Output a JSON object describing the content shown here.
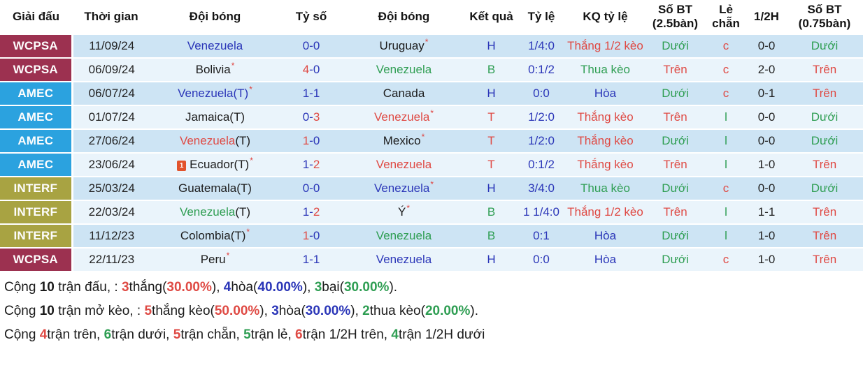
{
  "table": {
    "columns": [
      "Giải đấu",
      "Thời gian",
      "Đội bóng",
      "Tỷ số",
      "Đội bóng",
      "Kết quả",
      "Tỷ lệ",
      "KQ tỷ lệ",
      "Số BT (2.5bàn)",
      "Lẻ chẵn",
      "1/2H",
      "Số BT (0.75bàn)"
    ]
  },
  "icons": {
    "red_card_label": "1"
  },
  "colors": {
    "wcpsa_bg": "#9c3150",
    "amec_bg": "#2ba2df",
    "interf_bg": "#a8a342",
    "row_odd_bg": "#cde4f4",
    "row_even_bg": "#eaf4fb",
    "blue": "#2b36b8",
    "red": "#df4a44",
    "green": "#2f9e53"
  },
  "rows": [
    {
      "league": "WCPSA",
      "league_class": "wcpsa",
      "date": "11/09/24",
      "home": {
        "name": "Venezuela",
        "suffix": "",
        "color": "blue",
        "suffix_color": "blue",
        "star": false,
        "icon": false
      },
      "score": {
        "h": "0",
        "a": "0",
        "hc": "blue",
        "ac": "blue"
      },
      "away": {
        "name": "Uruguay",
        "suffix": "",
        "color": "black",
        "suffix_color": "black",
        "star": true,
        "icon": false
      },
      "result": {
        "t": "H",
        "c": "blue"
      },
      "odds": "1/4:0",
      "kq": {
        "t": "Thắng 1/2 kèo",
        "c": "red"
      },
      "bt25": {
        "t": "Dưới",
        "c": "green"
      },
      "oe": {
        "t": "c",
        "c": "red"
      },
      "h12": "0-0",
      "bt075": {
        "t": "Dưới",
        "c": "green"
      }
    },
    {
      "league": "WCPSA",
      "league_class": "wcpsa",
      "date": "06/09/24",
      "home": {
        "name": "Bolivia",
        "suffix": "",
        "color": "black",
        "suffix_color": "black",
        "star": true,
        "icon": false
      },
      "score": {
        "h": "4",
        "a": "0",
        "hc": "red",
        "ac": "blue"
      },
      "away": {
        "name": "Venezuela",
        "suffix": "",
        "color": "green",
        "suffix_color": "green",
        "star": false,
        "icon": false
      },
      "result": {
        "t": "B",
        "c": "green"
      },
      "odds": "0:1/2",
      "kq": {
        "t": "Thua kèo",
        "c": "green"
      },
      "bt25": {
        "t": "Trên",
        "c": "red"
      },
      "oe": {
        "t": "c",
        "c": "red"
      },
      "h12": "2-0",
      "bt075": {
        "t": "Trên",
        "c": "red"
      }
    },
    {
      "league": "AMEC",
      "league_class": "amec",
      "date": "06/07/24",
      "home": {
        "name": "Venezuela",
        "suffix": "(T)",
        "color": "blue",
        "suffix_color": "blue",
        "star": true,
        "icon": false
      },
      "score": {
        "h": "1",
        "a": "1",
        "hc": "blue",
        "ac": "blue"
      },
      "away": {
        "name": "Canada",
        "suffix": "",
        "color": "black",
        "suffix_color": "black",
        "star": false,
        "icon": false
      },
      "result": {
        "t": "H",
        "c": "blue"
      },
      "odds": "0:0",
      "kq": {
        "t": "Hòa",
        "c": "blue"
      },
      "bt25": {
        "t": "Dưới",
        "c": "green"
      },
      "oe": {
        "t": "c",
        "c": "red"
      },
      "h12": "0-1",
      "bt075": {
        "t": "Trên",
        "c": "red"
      }
    },
    {
      "league": "AMEC",
      "league_class": "amec",
      "date": "01/07/24",
      "home": {
        "name": "Jamaica",
        "suffix": "(T)",
        "color": "black",
        "suffix_color": "black",
        "star": false,
        "icon": false
      },
      "score": {
        "h": "0",
        "a": "3",
        "hc": "blue",
        "ac": "red"
      },
      "away": {
        "name": "Venezuela",
        "suffix": "",
        "color": "red",
        "suffix_color": "red",
        "star": true,
        "icon": false
      },
      "result": {
        "t": "T",
        "c": "red"
      },
      "odds": "1/2:0",
      "kq": {
        "t": "Thắng kèo",
        "c": "red"
      },
      "bt25": {
        "t": "Trên",
        "c": "red"
      },
      "oe": {
        "t": "l",
        "c": "green"
      },
      "h12": "0-0",
      "bt075": {
        "t": "Dưới",
        "c": "green"
      }
    },
    {
      "league": "AMEC",
      "league_class": "amec",
      "date": "27/06/24",
      "home": {
        "name": "Venezuela",
        "suffix": "(T)",
        "color": "red",
        "suffix_color": "black",
        "star": false,
        "icon": false
      },
      "score": {
        "h": "1",
        "a": "0",
        "hc": "red",
        "ac": "blue"
      },
      "away": {
        "name": "Mexico",
        "suffix": "",
        "color": "black",
        "suffix_color": "black",
        "star": true,
        "icon": false
      },
      "result": {
        "t": "T",
        "c": "red"
      },
      "odds": "1/2:0",
      "kq": {
        "t": "Thắng kèo",
        "c": "red"
      },
      "bt25": {
        "t": "Dưới",
        "c": "green"
      },
      "oe": {
        "t": "l",
        "c": "green"
      },
      "h12": "0-0",
      "bt075": {
        "t": "Dưới",
        "c": "green"
      }
    },
    {
      "league": "AMEC",
      "league_class": "amec",
      "date": "23/06/24",
      "home": {
        "name": "Ecuador",
        "suffix": "(T)",
        "color": "black",
        "suffix_color": "black",
        "star": true,
        "icon": true
      },
      "score": {
        "h": "1",
        "a": "2",
        "hc": "blue",
        "ac": "red"
      },
      "away": {
        "name": "Venezuela",
        "suffix": "",
        "color": "red",
        "suffix_color": "red",
        "star": false,
        "icon": false
      },
      "result": {
        "t": "T",
        "c": "red"
      },
      "odds": "0:1/2",
      "kq": {
        "t": "Thắng kèo",
        "c": "red"
      },
      "bt25": {
        "t": "Trên",
        "c": "red"
      },
      "oe": {
        "t": "l",
        "c": "green"
      },
      "h12": "1-0",
      "bt075": {
        "t": "Trên",
        "c": "red"
      }
    },
    {
      "league": "INTERF",
      "league_class": "interf",
      "date": "25/03/24",
      "home": {
        "name": "Guatemala",
        "suffix": "(T)",
        "color": "black",
        "suffix_color": "black",
        "star": false,
        "icon": false
      },
      "score": {
        "h": "0",
        "a": "0",
        "hc": "blue",
        "ac": "blue"
      },
      "away": {
        "name": "Venezuela",
        "suffix": "",
        "color": "blue",
        "suffix_color": "blue",
        "star": true,
        "icon": false
      },
      "result": {
        "t": "H",
        "c": "blue"
      },
      "odds": "3/4:0",
      "kq": {
        "t": "Thua kèo",
        "c": "green"
      },
      "bt25": {
        "t": "Dưới",
        "c": "green"
      },
      "oe": {
        "t": "c",
        "c": "red"
      },
      "h12": "0-0",
      "bt075": {
        "t": "Dưới",
        "c": "green"
      }
    },
    {
      "league": "INTERF",
      "league_class": "interf",
      "date": "22/03/24",
      "home": {
        "name": "Venezuela",
        "suffix": "(T)",
        "color": "green",
        "suffix_color": "black",
        "star": false,
        "icon": false
      },
      "score": {
        "h": "1",
        "a": "2",
        "hc": "blue",
        "ac": "red"
      },
      "away": {
        "name": "Ý",
        "suffix": "",
        "color": "black",
        "suffix_color": "black",
        "star": true,
        "icon": false
      },
      "result": {
        "t": "B",
        "c": "green"
      },
      "odds": "1 1/4:0",
      "kq": {
        "t": "Thắng 1/2 kèo",
        "c": "red"
      },
      "bt25": {
        "t": "Trên",
        "c": "red"
      },
      "oe": {
        "t": "l",
        "c": "green"
      },
      "h12": "1-1",
      "bt075": {
        "t": "Trên",
        "c": "red"
      }
    },
    {
      "league": "INTERF",
      "league_class": "interf",
      "date": "11/12/23",
      "home": {
        "name": "Colombia",
        "suffix": "(T)",
        "color": "black",
        "suffix_color": "black",
        "star": true,
        "icon": false
      },
      "score": {
        "h": "1",
        "a": "0",
        "hc": "red",
        "ac": "blue"
      },
      "away": {
        "name": "Venezuela",
        "suffix": "",
        "color": "green",
        "suffix_color": "green",
        "star": false,
        "icon": false
      },
      "result": {
        "t": "B",
        "c": "green"
      },
      "odds": "0:1",
      "kq": {
        "t": "Hòa",
        "c": "blue"
      },
      "bt25": {
        "t": "Dưới",
        "c": "green"
      },
      "oe": {
        "t": "l",
        "c": "green"
      },
      "h12": "1-0",
      "bt075": {
        "t": "Trên",
        "c": "red"
      }
    },
    {
      "league": "WCPSA",
      "league_class": "wcpsa",
      "date": "22/11/23",
      "home": {
        "name": "Peru",
        "suffix": "",
        "color": "black",
        "suffix_color": "black",
        "star": true,
        "icon": false
      },
      "score": {
        "h": "1",
        "a": "1",
        "hc": "blue",
        "ac": "blue"
      },
      "away": {
        "name": "Venezuela",
        "suffix": "",
        "color": "blue",
        "suffix_color": "blue",
        "star": false,
        "icon": false
      },
      "result": {
        "t": "H",
        "c": "blue"
      },
      "odds": "0:0",
      "kq": {
        "t": "Hòa",
        "c": "blue"
      },
      "bt25": {
        "t": "Dưới",
        "c": "green"
      },
      "oe": {
        "t": "c",
        "c": "red"
      },
      "h12": "1-0",
      "bt075": {
        "t": "Trên",
        "c": "red"
      }
    }
  ],
  "summary": {
    "lines": [
      [
        {
          "t": "Cộng ",
          "c": "black",
          "b": false
        },
        {
          "t": "10",
          "c": "black",
          "b": true
        },
        {
          "t": " trận đấu, : ",
          "c": "black",
          "b": false
        },
        {
          "t": "3",
          "c": "red",
          "b": true
        },
        {
          "t": "thắng(",
          "c": "black",
          "b": false
        },
        {
          "t": "30.00%",
          "c": "red",
          "b": true
        },
        {
          "t": "), ",
          "c": "black",
          "b": false
        },
        {
          "t": "4",
          "c": "blue",
          "b": true
        },
        {
          "t": "hòa(",
          "c": "black",
          "b": false
        },
        {
          "t": "40.00%",
          "c": "blue",
          "b": true
        },
        {
          "t": "), ",
          "c": "black",
          "b": false
        },
        {
          "t": "3",
          "c": "green",
          "b": true
        },
        {
          "t": "bại(",
          "c": "black",
          "b": false
        },
        {
          "t": "30.00%",
          "c": "green",
          "b": true
        },
        {
          "t": ").",
          "c": "black",
          "b": false
        }
      ],
      [
        {
          "t": "Cộng ",
          "c": "black",
          "b": false
        },
        {
          "t": "10",
          "c": "black",
          "b": true
        },
        {
          "t": " trận mở kèo, : ",
          "c": "black",
          "b": false
        },
        {
          "t": "5",
          "c": "red",
          "b": true
        },
        {
          "t": "thắng kèo(",
          "c": "black",
          "b": false
        },
        {
          "t": "50.00%",
          "c": "red",
          "b": true
        },
        {
          "t": "), ",
          "c": "black",
          "b": false
        },
        {
          "t": "3",
          "c": "blue",
          "b": true
        },
        {
          "t": "hòa(",
          "c": "black",
          "b": false
        },
        {
          "t": "30.00%",
          "c": "blue",
          "b": true
        },
        {
          "t": "), ",
          "c": "black",
          "b": false
        },
        {
          "t": "2",
          "c": "green",
          "b": true
        },
        {
          "t": "thua kèo(",
          "c": "black",
          "b": false
        },
        {
          "t": "20.00%",
          "c": "green",
          "b": true
        },
        {
          "t": ").",
          "c": "black",
          "b": false
        }
      ],
      [
        {
          "t": "Cộng ",
          "c": "black",
          "b": false
        },
        {
          "t": "4",
          "c": "red",
          "b": true
        },
        {
          "t": "trận trên, ",
          "c": "black",
          "b": false
        },
        {
          "t": "6",
          "c": "green",
          "b": true
        },
        {
          "t": "trận dưới, ",
          "c": "black",
          "b": false
        },
        {
          "t": "5",
          "c": "red",
          "b": true
        },
        {
          "t": "trận chẵn, ",
          "c": "black",
          "b": false
        },
        {
          "t": "5",
          "c": "green",
          "b": true
        },
        {
          "t": "trận lẻ, ",
          "c": "black",
          "b": false
        },
        {
          "t": "6",
          "c": "red",
          "b": true
        },
        {
          "t": "trận 1/2H trên, ",
          "c": "black",
          "b": false
        },
        {
          "t": "4",
          "c": "green",
          "b": true
        },
        {
          "t": "trận 1/2H dưới",
          "c": "black",
          "b": false
        }
      ]
    ]
  }
}
